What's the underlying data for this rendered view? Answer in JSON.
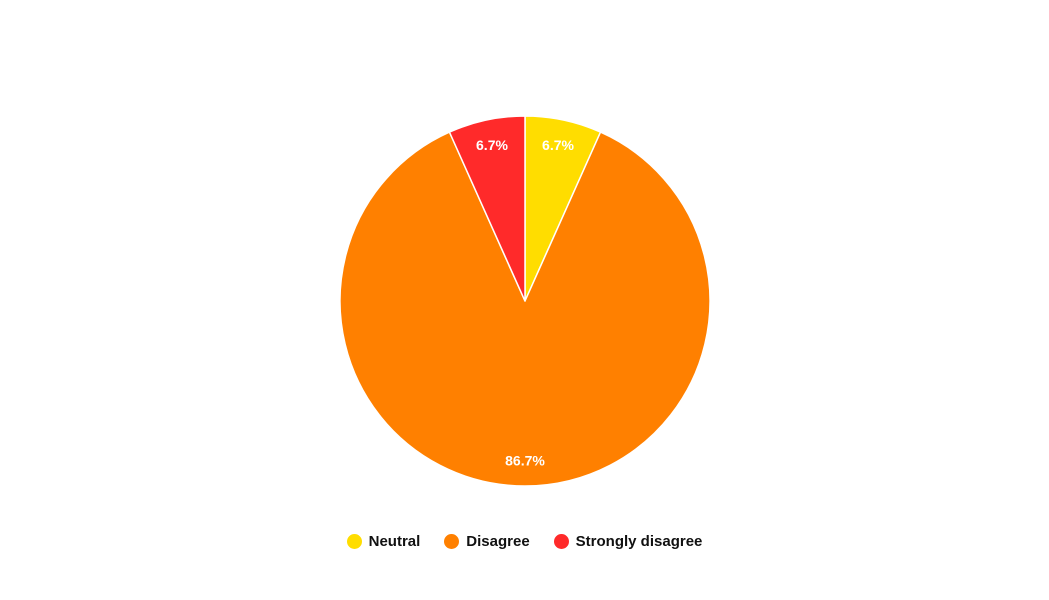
{
  "chart_data": {
    "type": "pie",
    "title": "",
    "slices": [
      {
        "label": "Neutral",
        "value": 6.7,
        "display": "6.7%",
        "color": "#FFDD00"
      },
      {
        "label": "Disagree",
        "value": 86.7,
        "display": "86.7%",
        "color": "#FF8000"
      },
      {
        "label": "Strongly disagree",
        "value": 6.7,
        "display": "6.7%",
        "color": "#FF2A2A"
      }
    ],
    "legend_position": "bottom-center",
    "start_angle": "top",
    "direction": "clockwise"
  }
}
